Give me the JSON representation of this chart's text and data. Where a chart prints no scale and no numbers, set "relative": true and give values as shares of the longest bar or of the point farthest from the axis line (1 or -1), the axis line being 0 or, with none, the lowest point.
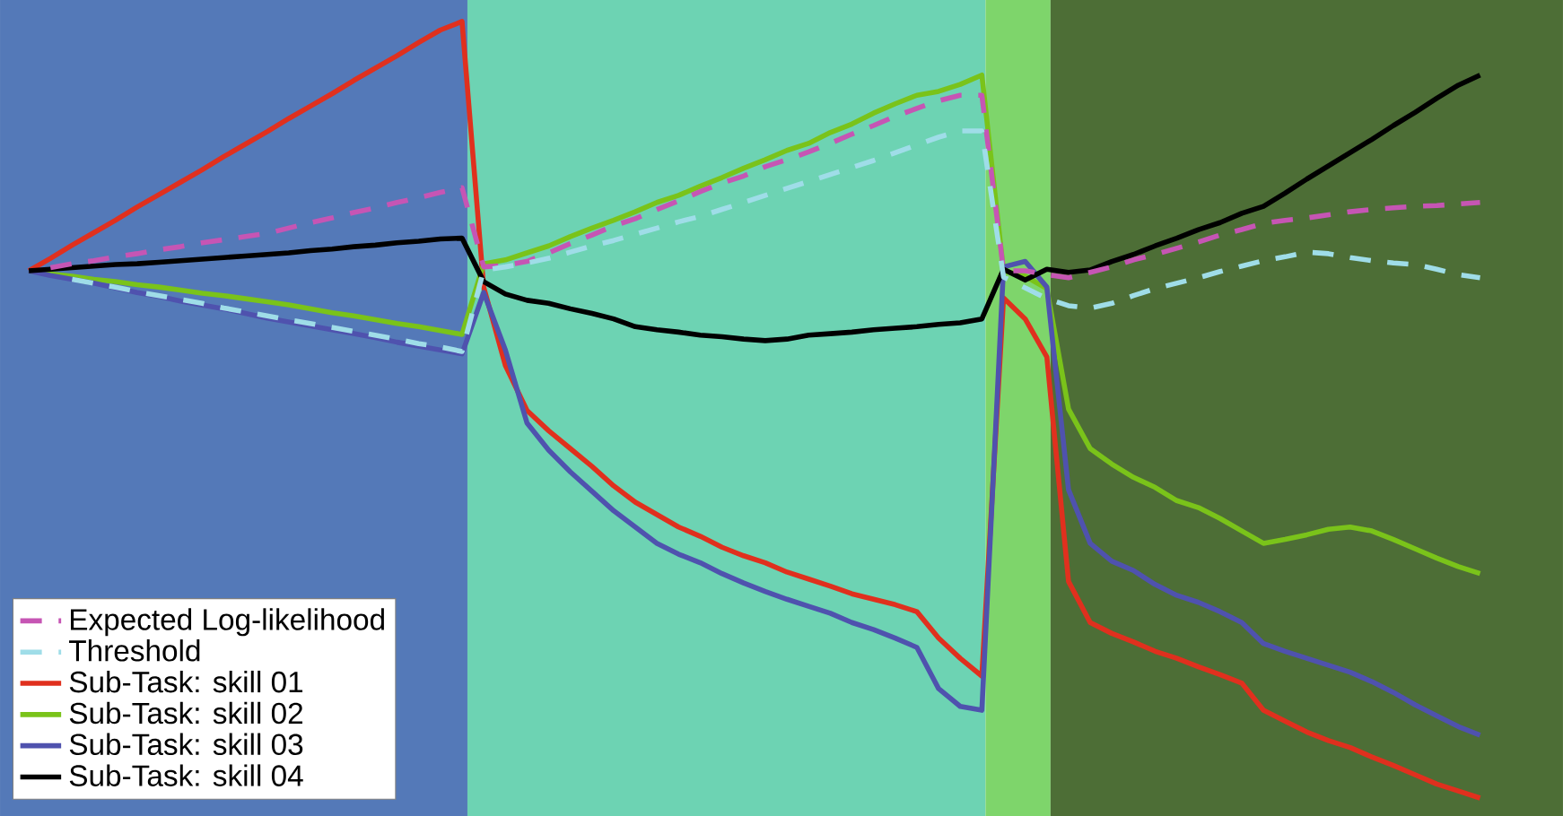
{
  "chart_data": {
    "type": "line",
    "relative": true,
    "tick_labels": false,
    "legend": "bottom left",
    "marker": "none",
    "categories": [
      null,
      null,
      null,
      null,
      null,
      null,
      null,
      null,
      null,
      null,
      null,
      null,
      null,
      null,
      null,
      null,
      null,
      null,
      null,
      null,
      null,
      null,
      null,
      null,
      null,
      null,
      null,
      null,
      null,
      null,
      null,
      null,
      null,
      null,
      null,
      null,
      null,
      null,
      null,
      null,
      null,
      null,
      null,
      null,
      null,
      null,
      null,
      null,
      null,
      null,
      null,
      null,
      null,
      null,
      null,
      null,
      null,
      null,
      null,
      null,
      null,
      null,
      null,
      null,
      null,
      null,
      null,
      null
    ],
    "series": [
      {
        "name": "Expected Log-likelihood",
        "color": "#c655b4",
        "line_style": "dashed",
        "values": [
          null,
          0.683,
          0.688,
          0.692,
          0.697,
          0.701,
          0.706,
          0.71,
          0.715,
          0.719,
          0.723,
          0.727,
          0.734,
          0.741,
          0.747,
          0.754,
          0.76,
          0.767,
          0.773,
          0.78,
          0.786,
          0.684,
          0.686,
          0.691,
          0.702,
          0.714,
          0.725,
          0.737,
          0.746,
          0.758,
          0.769,
          0.781,
          0.792,
          0.801,
          0.813,
          0.822,
          0.832,
          0.843,
          0.855,
          0.866,
          0.878,
          0.888,
          0.898,
          0.905,
          0.905,
          0.679,
          0.679,
          0.674,
          0.67,
          0.677,
          0.684,
          0.693,
          0.7,
          0.708,
          0.716,
          0.725,
          0.732,
          0.74,
          0.744,
          0.747,
          0.751,
          0.755,
          0.758,
          0.76,
          0.762,
          0.763,
          0.765,
          0.767
        ]
      },
      {
        "name": "Threshold",
        "color": "#9fdde8",
        "line_style": "dashed",
        "values": [
          null,
          null,
          0.668,
          0.663,
          0.658,
          0.652,
          0.647,
          0.642,
          0.637,
          0.631,
          0.626,
          0.621,
          0.616,
          0.611,
          0.606,
          0.601,
          0.596,
          0.591,
          0.585,
          0.581,
          0.575,
          0.68,
          0.684,
          0.689,
          0.695,
          0.703,
          0.711,
          0.718,
          0.726,
          0.734,
          0.742,
          0.749,
          0.758,
          0.767,
          0.776,
          0.785,
          0.794,
          0.803,
          0.812,
          0.821,
          0.831,
          0.841,
          0.851,
          0.859,
          0.859,
          0.671,
          0.657,
          0.643,
          0.634,
          0.631,
          0.637,
          0.647,
          0.656,
          0.663,
          0.67,
          0.678,
          0.685,
          0.692,
          0.697,
          0.703,
          0.701,
          0.696,
          0.692,
          0.689,
          0.687,
          0.681,
          0.674,
          0.67
        ]
      },
      {
        "name": "Sub-Task: skill 01",
        "color": "#e0301e",
        "line_style": "solid",
        "values": [
          0.679,
          0.695,
          0.712,
          0.728,
          0.744,
          0.761,
          0.777,
          0.793,
          0.809,
          0.826,
          0.842,
          0.858,
          0.875,
          0.891,
          0.907,
          0.924,
          0.94,
          0.956,
          0.973,
          0.989,
          1.0,
          0.658,
          0.557,
          0.499,
          0.473,
          0.45,
          0.427,
          0.402,
          0.381,
          0.365,
          0.349,
          0.337,
          0.323,
          0.312,
          0.303,
          0.291,
          0.282,
          0.273,
          0.263,
          0.256,
          0.249,
          0.24,
          0.206,
          0.18,
          0.157,
          0.644,
          0.617,
          0.568,
          0.279,
          0.226,
          0.212,
          0.201,
          0.189,
          0.18,
          0.169,
          0.159,
          0.148,
          0.113,
          0.099,
          0.085,
          0.074,
          0.065,
          0.053,
          0.042,
          0.03,
          0.018,
          0.009,
          0.0
        ]
      },
      {
        "name": "Sub-Task: skill 02",
        "color": "#7ac31a",
        "line_style": "solid",
        "values": [
          0.679,
          0.675,
          0.672,
          0.668,
          0.665,
          0.661,
          0.658,
          0.654,
          0.65,
          0.647,
          0.643,
          0.639,
          0.635,
          0.63,
          0.625,
          0.621,
          0.616,
          0.611,
          0.607,
          0.602,
          0.597,
          0.688,
          0.693,
          0.702,
          0.711,
          0.723,
          0.734,
          0.744,
          0.755,
          0.767,
          0.776,
          0.788,
          0.799,
          0.811,
          0.822,
          0.834,
          0.843,
          0.857,
          0.868,
          0.882,
          0.894,
          0.905,
          0.91,
          0.919,
          0.931,
          0.679,
          0.672,
          0.656,
          0.501,
          0.45,
          0.43,
          0.413,
          0.4,
          0.383,
          0.374,
          0.36,
          0.344,
          0.328,
          0.333,
          0.339,
          0.346,
          0.349,
          0.344,
          0.333,
          0.321,
          0.309,
          0.298,
          0.289
        ]
      },
      {
        "name": "Sub-Task: skill 03",
        "color": "#4f52ae",
        "line_style": "solid",
        "values": [
          0.679,
          0.673,
          0.668,
          0.663,
          0.657,
          0.651,
          0.646,
          0.64,
          0.635,
          0.63,
          0.624,
          0.618,
          0.613,
          0.608,
          0.603,
          0.598,
          0.593,
          0.587,
          0.582,
          0.577,
          0.572,
          0.651,
          0.577,
          0.483,
          0.448,
          0.42,
          0.395,
          0.37,
          0.349,
          0.328,
          0.314,
          0.303,
          0.289,
          0.277,
          0.266,
          0.256,
          0.247,
          0.238,
          0.226,
          0.217,
          0.206,
          0.194,
          0.141,
          0.118,
          0.113,
          0.684,
          0.691,
          0.658,
          0.397,
          0.328,
          0.305,
          0.293,
          0.275,
          0.261,
          0.252,
          0.24,
          0.226,
          0.199,
          0.189,
          0.18,
          0.171,
          0.162,
          0.15,
          0.136,
          0.12,
          0.106,
          0.092,
          0.081
        ]
      },
      {
        "name": "Sub-Task: skill 04",
        "color": "#000000",
        "line_style": "solid",
        "values": [
          0.679,
          0.681,
          0.683,
          0.685,
          0.687,
          0.688,
          0.69,
          0.692,
          0.694,
          0.696,
          0.698,
          0.7,
          0.702,
          0.705,
          0.707,
          0.71,
          0.712,
          0.715,
          0.717,
          0.72,
          0.721,
          0.665,
          0.649,
          0.641,
          0.637,
          0.63,
          0.624,
          0.617,
          0.607,
          0.603,
          0.6,
          0.596,
          0.594,
          0.591,
          0.589,
          0.591,
          0.596,
          0.598,
          0.6,
          0.603,
          0.605,
          0.607,
          0.61,
          0.612,
          0.617,
          0.681,
          0.667,
          0.681,
          0.677,
          0.68,
          0.691,
          0.7,
          0.711,
          0.721,
          0.732,
          0.741,
          0.753,
          0.762,
          0.779,
          0.797,
          0.814,
          0.831,
          0.848,
          0.866,
          0.883,
          0.901,
          0.918,
          0.931
        ]
      }
    ]
  }
}
